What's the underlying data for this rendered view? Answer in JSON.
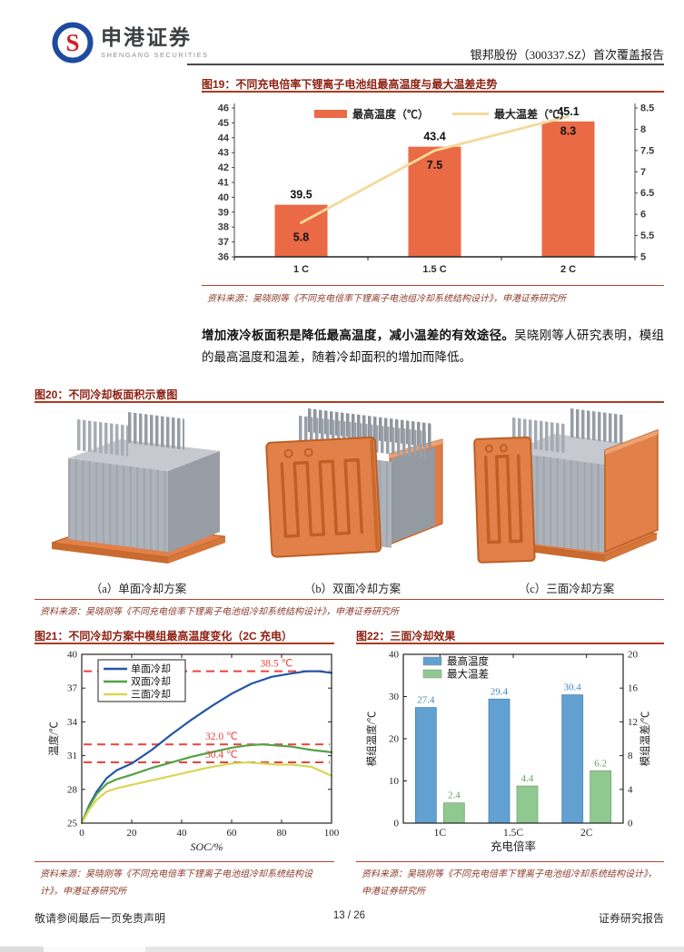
{
  "header": {
    "brand_cn": "申港证券",
    "brand_en": "SHENGANG SECURITIES",
    "report_title": "银邦股份（300337.SZ）首次覆盖报告"
  },
  "figure19": {
    "title": "图19：不同充电倍率下锂离子电池组最高温度与最大温差走势",
    "source": "资料来源：吴晓刚等《不同充电倍率下锂离子电池组冷却系统结构设计》，申港证券研究所"
  },
  "paragraph": {
    "bold": "增加液冷板面积是降低最高温度，减小温差的有效途径。",
    "rest": "吴晓刚等人研究表明，模组的最高温度和温差，随着冷却面积的增加而降低。"
  },
  "figure20": {
    "title": "图20：不同冷却板面积示意图",
    "captions": [
      "（a）单面冷却方案",
      "（b）双面冷却方案",
      "（c）三面冷却方案"
    ],
    "source": "资料来源：吴晓刚等《不同充电倍率下锂离子电池组冷却系统结构设计》，申港证券研究所"
  },
  "figure21": {
    "title": "图21：不同冷却方案中模组最高温度变化（2C 充电）",
    "source": "资料来源：吴晓刚等《不同充电倍率下锂离子电池组冷却系统结构设计》，申港证券研究所"
  },
  "figure22": {
    "title": "图22：三面冷却效果",
    "source": "资料来源：吴晓刚等《不同充电倍率下锂离子电池组冷却系统结构设计》，申港证券研究所"
  },
  "footer": {
    "left": "敬请参阅最后一页免责声明",
    "center": "13 / 26",
    "right": "证券研究报告"
  },
  "chart_data": [
    {
      "id": "fig19",
      "type": "bar",
      "title": "不同充电倍率下锂离子电池组最高温度与最大温差走势",
      "categories": [
        "1 C",
        "1.5 C",
        "2 C"
      ],
      "series": [
        {
          "name": "最高温度（℃）",
          "type": "bar",
          "axis": "left",
          "color": "#EA6A45",
          "values": [
            39.5,
            43.4,
            45.1
          ]
        },
        {
          "name": "最大温差（℃）",
          "type": "line",
          "axis": "right",
          "color": "#F2DA9A",
          "values": [
            5.8,
            7.5,
            8.3
          ]
        }
      ],
      "left_axis": {
        "min": 36,
        "max": 46,
        "step": 1
      },
      "right_axis": {
        "min": 5,
        "max": 8.5,
        "step": 0.5
      },
      "legend_position": "top-center",
      "grid": false
    },
    {
      "id": "fig21",
      "type": "line",
      "title": "不同冷却方案中模组最高温度变化（2C 充电）",
      "xlabel": "SOC/%",
      "ylabel": "温度/℃",
      "xlim": [
        0,
        100
      ],
      "xticks": [
        0,
        20,
        40,
        60,
        80,
        100
      ],
      "ylim": [
        25,
        40
      ],
      "yticks": [
        25,
        28,
        31,
        34,
        37,
        40
      ],
      "legend_position": "top-left",
      "grid": false,
      "series": [
        {
          "name": "单面冷却",
          "color": "#2356A7",
          "points": [
            [
              0,
              25
            ],
            [
              3,
              26.6
            ],
            [
              6,
              27.8
            ],
            [
              10,
              29.0
            ],
            [
              14,
              29.7
            ],
            [
              20,
              30.3
            ],
            [
              28,
              31.5
            ],
            [
              36,
              32.9
            ],
            [
              44,
              34.2
            ],
            [
              52,
              35.4
            ],
            [
              60,
              36.5
            ],
            [
              68,
              37.4
            ],
            [
              76,
              38.0
            ],
            [
              84,
              38.3
            ],
            [
              90,
              38.5
            ],
            [
              95,
              38.5
            ],
            [
              100,
              38.35
            ]
          ]
        },
        {
          "name": "双面冷却",
          "color": "#55A045",
          "points": [
            [
              0,
              25
            ],
            [
              3,
              26.5
            ],
            [
              6,
              27.6
            ],
            [
              10,
              28.5
            ],
            [
              14,
              28.9
            ],
            [
              20,
              29.3
            ],
            [
              28,
              29.9
            ],
            [
              36,
              30.4
            ],
            [
              44,
              30.9
            ],
            [
              52,
              31.3
            ],
            [
              60,
              31.7
            ],
            [
              66,
              31.9
            ],
            [
              72,
              32.0
            ],
            [
              78,
              31.9
            ],
            [
              84,
              31.8
            ],
            [
              92,
              31.5
            ],
            [
              100,
              31.3
            ]
          ]
        },
        {
          "name": "三面冷却",
          "color": "#D6D757",
          "points": [
            [
              0,
              25
            ],
            [
              3,
              26.2
            ],
            [
              6,
              27.1
            ],
            [
              10,
              27.8
            ],
            [
              14,
              28.1
            ],
            [
              20,
              28.4
            ],
            [
              28,
              28.8
            ],
            [
              36,
              29.2
            ],
            [
              44,
              29.6
            ],
            [
              52,
              30.0
            ],
            [
              60,
              30.3
            ],
            [
              66,
              30.4
            ],
            [
              72,
              30.3
            ],
            [
              78,
              30.2
            ],
            [
              84,
              30.2
            ],
            [
              92,
              30.0
            ],
            [
              100,
              29.2
            ]
          ]
        }
      ],
      "reference_lines": [
        {
          "value": 38.5,
          "label": "38.5 ℃",
          "xfrac": 0.78
        },
        {
          "value": 32.0,
          "label": "32.0 ℃",
          "xfrac": 0.56
        },
        {
          "value": 30.4,
          "label": "30.4 ℃",
          "xfrac": 0.56
        }
      ],
      "ref_color": "#E8433C"
    },
    {
      "id": "fig22",
      "type": "bar",
      "title": "三面冷却效果",
      "categories": [
        "1C",
        "1.5C",
        "2C"
      ],
      "xlabel": "充电倍率",
      "left_ylabel": "模组温度/℃",
      "right_ylabel": "模组温差/℃",
      "left_axis": {
        "min": 0,
        "max": 40,
        "ticks": [
          0,
          10,
          20,
          30,
          40
        ]
      },
      "right_axis": {
        "min": 0,
        "max": 20,
        "ticks": [
          0,
          4,
          8,
          12,
          16,
          20
        ]
      },
      "legend_position": "top-left",
      "grid": false,
      "series": [
        {
          "name": "最高温度",
          "axis": "left",
          "color": "#62A0D2",
          "label_color": "#3E87C2",
          "values": [
            27.4,
            29.4,
            30.4
          ]
        },
        {
          "name": "最大温差",
          "axis": "right",
          "color": "#8FC98F",
          "label_color": "#5FA75D",
          "values": [
            2.4,
            4.4,
            6.2
          ]
        }
      ]
    }
  ]
}
